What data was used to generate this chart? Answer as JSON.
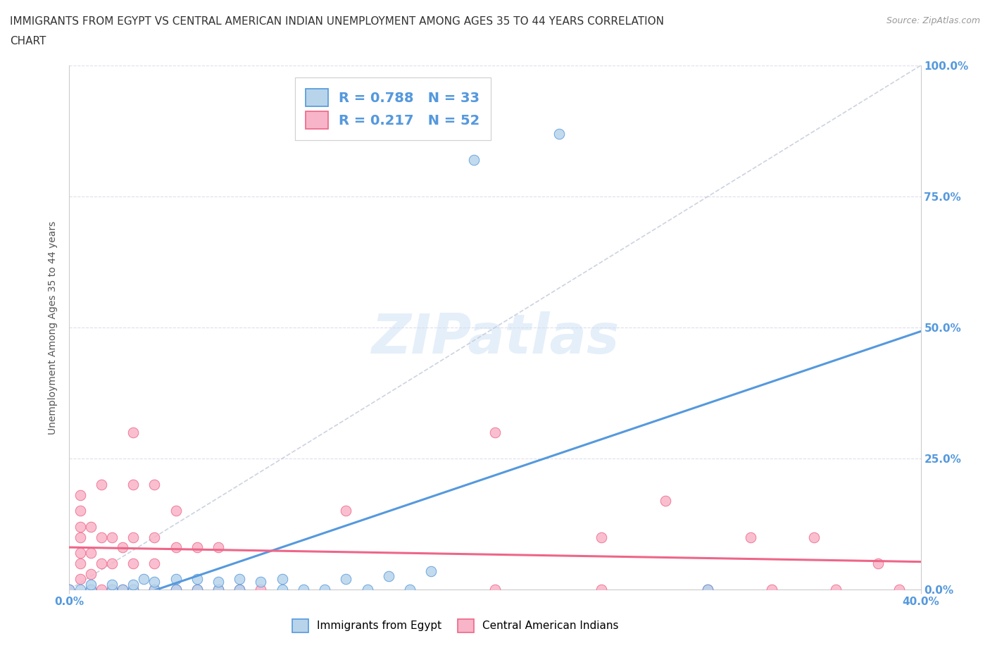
{
  "title_line1": "IMMIGRANTS FROM EGYPT VS CENTRAL AMERICAN INDIAN UNEMPLOYMENT AMONG AGES 35 TO 44 YEARS CORRELATION",
  "title_line2": "CHART",
  "source_text": "Source: ZipAtlas.com",
  "ylabel": "Unemployment Among Ages 35 to 44 years",
  "xlim": [
    0.0,
    0.4
  ],
  "ylim": [
    0.0,
    1.0
  ],
  "xtick_labels": [
    "0.0%",
    "40.0%"
  ],
  "ytick_labels": [
    "0.0%",
    "25.0%",
    "50.0%",
    "75.0%",
    "100.0%"
  ],
  "ytick_positions": [
    0.0,
    0.25,
    0.5,
    0.75,
    1.0
  ],
  "watermark": "ZIPatlas",
  "color_blue": "#b8d4ea",
  "color_pink": "#f8b4c8",
  "line_blue": "#5599dd",
  "line_pink": "#ee6688",
  "trend_gray": "#c0c8d8",
  "egypt_scatter": [
    [
      0.0,
      0.0
    ],
    [
      0.005,
      0.0
    ],
    [
      0.01,
      0.0
    ],
    [
      0.01,
      0.01
    ],
    [
      0.02,
      0.0
    ],
    [
      0.02,
      0.01
    ],
    [
      0.025,
      0.0
    ],
    [
      0.03,
      0.0
    ],
    [
      0.03,
      0.01
    ],
    [
      0.035,
      0.02
    ],
    [
      0.04,
      0.0
    ],
    [
      0.04,
      0.015
    ],
    [
      0.05,
      0.0
    ],
    [
      0.05,
      0.02
    ],
    [
      0.06,
      0.0
    ],
    [
      0.06,
      0.02
    ],
    [
      0.07,
      0.0
    ],
    [
      0.07,
      0.015
    ],
    [
      0.08,
      0.0
    ],
    [
      0.08,
      0.02
    ],
    [
      0.09,
      0.015
    ],
    [
      0.1,
      0.0
    ],
    [
      0.1,
      0.02
    ],
    [
      0.11,
      0.0
    ],
    [
      0.12,
      0.0
    ],
    [
      0.13,
      0.02
    ],
    [
      0.14,
      0.0
    ],
    [
      0.15,
      0.025
    ],
    [
      0.16,
      0.0
    ],
    [
      0.17,
      0.035
    ],
    [
      0.19,
      0.82
    ],
    [
      0.23,
      0.87
    ],
    [
      0.3,
      0.0
    ]
  ],
  "central_american_scatter": [
    [
      0.0,
      0.0
    ],
    [
      0.005,
      0.02
    ],
    [
      0.005,
      0.05
    ],
    [
      0.005,
      0.07
    ],
    [
      0.005,
      0.1
    ],
    [
      0.005,
      0.12
    ],
    [
      0.005,
      0.15
    ],
    [
      0.005,
      0.18
    ],
    [
      0.01,
      0.0
    ],
    [
      0.01,
      0.03
    ],
    [
      0.01,
      0.07
    ],
    [
      0.01,
      0.12
    ],
    [
      0.015,
      0.0
    ],
    [
      0.015,
      0.05
    ],
    [
      0.015,
      0.1
    ],
    [
      0.015,
      0.2
    ],
    [
      0.02,
      0.0
    ],
    [
      0.02,
      0.05
    ],
    [
      0.02,
      0.1
    ],
    [
      0.025,
      0.0
    ],
    [
      0.025,
      0.08
    ],
    [
      0.03,
      0.0
    ],
    [
      0.03,
      0.05
    ],
    [
      0.03,
      0.1
    ],
    [
      0.03,
      0.2
    ],
    [
      0.03,
      0.3
    ],
    [
      0.04,
      0.0
    ],
    [
      0.04,
      0.05
    ],
    [
      0.04,
      0.1
    ],
    [
      0.04,
      0.2
    ],
    [
      0.05,
      0.0
    ],
    [
      0.05,
      0.08
    ],
    [
      0.05,
      0.15
    ],
    [
      0.06,
      0.0
    ],
    [
      0.06,
      0.08
    ],
    [
      0.07,
      0.0
    ],
    [
      0.07,
      0.08
    ],
    [
      0.08,
      0.0
    ],
    [
      0.09,
      0.0
    ],
    [
      0.13,
      0.15
    ],
    [
      0.2,
      0.3
    ],
    [
      0.2,
      0.0
    ],
    [
      0.25,
      0.1
    ],
    [
      0.25,
      0.0
    ],
    [
      0.28,
      0.17
    ],
    [
      0.3,
      0.0
    ],
    [
      0.32,
      0.1
    ],
    [
      0.33,
      0.0
    ],
    [
      0.35,
      0.1
    ],
    [
      0.36,
      0.0
    ],
    [
      0.38,
      0.05
    ],
    [
      0.39,
      0.0
    ]
  ]
}
